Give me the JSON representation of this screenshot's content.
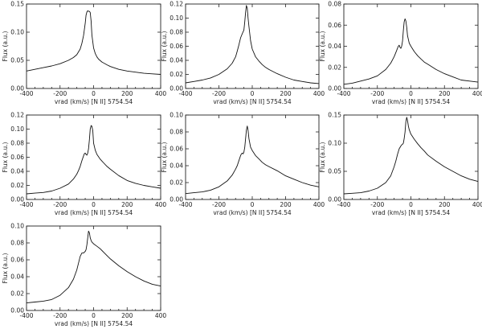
{
  "chart_data": [
    {
      "type": "line",
      "xlabel": "vrad (km/s)   [N II] 5754.54",
      "ylabel": "Flux (a.u.)",
      "xlim": [
        -400,
        400
      ],
      "ylim": [
        0,
        0.15
      ],
      "xticks": [
        "-400",
        "-200",
        "0",
        "200",
        "400"
      ],
      "yticks": [
        "0.00",
        "0.05",
        "0.10",
        "0.15"
      ],
      "series": [
        {
          "x": [
            -400,
            -350,
            -300,
            -250,
            -200,
            -150,
            -120,
            -100,
            -80,
            -70,
            -60,
            -50,
            -45,
            -40,
            -35,
            -30,
            -25,
            -20,
            -15,
            -10,
            0,
            10,
            20,
            30,
            50,
            80,
            100,
            150,
            200,
            250,
            300,
            350,
            400
          ],
          "y": [
            0.031,
            0.034,
            0.037,
            0.04,
            0.044,
            0.05,
            0.055,
            0.06,
            0.07,
            0.08,
            0.094,
            0.116,
            0.13,
            0.136,
            0.138,
            0.137,
            0.137,
            0.135,
            0.12,
            0.095,
            0.072,
            0.062,
            0.056,
            0.052,
            0.047,
            0.042,
            0.039,
            0.034,
            0.031,
            0.029,
            0.027,
            0.026,
            0.025
          ]
        }
      ]
    },
    {
      "type": "line",
      "xlabel": "vrad (km/s)   [N II] 5754.54",
      "ylabel": "Flux (a.u.)",
      "xlim": [
        -400,
        400
      ],
      "ylim": [
        0,
        0.12
      ],
      "xticks": [
        "-400",
        "-200",
        "0",
        "200",
        "400"
      ],
      "yticks": [
        "0.00",
        "0.02",
        "0.04",
        "0.06",
        "0.08",
        "0.10",
        "0.12"
      ],
      "series": [
        {
          "x": [
            -400,
            -350,
            -300,
            -250,
            -200,
            -150,
            -120,
            -100,
            -90,
            -80,
            -70,
            -60,
            -50,
            -45,
            -40,
            -35,
            -30,
            -25,
            -20,
            -10,
            0,
            20,
            40,
            60,
            80,
            100,
            150,
            200,
            250,
            300,
            350,
            400
          ],
          "y": [
            0.008,
            0.01,
            0.012,
            0.015,
            0.02,
            0.028,
            0.036,
            0.045,
            0.053,
            0.062,
            0.072,
            0.078,
            0.083,
            0.095,
            0.108,
            0.118,
            0.114,
            0.1,
            0.088,
            0.068,
            0.056,
            0.045,
            0.039,
            0.034,
            0.03,
            0.027,
            0.021,
            0.016,
            0.012,
            0.01,
            0.008,
            0.007
          ]
        }
      ]
    },
    {
      "type": "line",
      "xlabel": "vrad (km/s)   [N II] 5754.54",
      "ylabel": "Flux (a.u.)",
      "xlim": [
        -400,
        400
      ],
      "ylim": [
        0,
        0.08
      ],
      "xticks": [
        "-400",
        "-200",
        "0",
        "200",
        "400"
      ],
      "yticks": [
        "0.00",
        "0.02",
        "0.04",
        "0.06",
        "0.08"
      ],
      "series": [
        {
          "x": [
            -400,
            -350,
            -300,
            -250,
            -200,
            -150,
            -120,
            -100,
            -90,
            -80,
            -75,
            -70,
            -65,
            -60,
            -55,
            -50,
            -45,
            -40,
            -35,
            -30,
            -25,
            -20,
            -10,
            0,
            20,
            40,
            60,
            80,
            100,
            150,
            200,
            250,
            300,
            350,
            400
          ],
          "y": [
            0.004,
            0.005,
            0.007,
            0.009,
            0.012,
            0.018,
            0.024,
            0.03,
            0.034,
            0.038,
            0.04,
            0.041,
            0.039,
            0.038,
            0.04,
            0.045,
            0.055,
            0.063,
            0.066,
            0.064,
            0.058,
            0.05,
            0.043,
            0.04,
            0.035,
            0.031,
            0.028,
            0.025,
            0.023,
            0.018,
            0.014,
            0.011,
            0.008,
            0.007,
            0.006
          ]
        }
      ]
    },
    {
      "type": "line",
      "xlabel": "vrad (km/s)   [N II] 5754.54",
      "ylabel": "Flux (a.u.)",
      "xlim": [
        -400,
        400
      ],
      "ylim": [
        0,
        0.12
      ],
      "xticks": [
        "-400",
        "-200",
        "0",
        "200",
        "400"
      ],
      "yticks": [
        "0.00",
        "0.02",
        "0.04",
        "0.06",
        "0.08",
        "0.10",
        "0.12"
      ],
      "series": [
        {
          "x": [
            -400,
            -350,
            -300,
            -250,
            -200,
            -150,
            -120,
            -100,
            -90,
            -80,
            -70,
            -60,
            -55,
            -50,
            -45,
            -40,
            -35,
            -30,
            -25,
            -20,
            -15,
            -10,
            -5,
            0,
            10,
            20,
            40,
            60,
            80,
            100,
            150,
            200,
            250,
            300,
            350,
            400
          ],
          "y": [
            0.008,
            0.009,
            0.01,
            0.012,
            0.016,
            0.022,
            0.029,
            0.036,
            0.041,
            0.047,
            0.055,
            0.062,
            0.065,
            0.066,
            0.064,
            0.063,
            0.066,
            0.072,
            0.085,
            0.1,
            0.105,
            0.104,
            0.098,
            0.08,
            0.07,
            0.064,
            0.057,
            0.052,
            0.047,
            0.043,
            0.034,
            0.027,
            0.023,
            0.02,
            0.018,
            0.016
          ]
        }
      ]
    },
    {
      "type": "line",
      "xlabel": "vrad (km/s)   [N II] 5754.54",
      "ylabel": "Flux (a.u.)",
      "xlim": [
        -400,
        400
      ],
      "ylim": [
        0,
        0.1
      ],
      "xticks": [
        "-400",
        "-200",
        "0",
        "200",
        "400"
      ],
      "yticks": [
        "0.00",
        "0.02",
        "0.04",
        "0.06",
        "0.08",
        "0.10"
      ],
      "series": [
        {
          "x": [
            -400,
            -350,
            -300,
            -250,
            -200,
            -150,
            -120,
            -100,
            -90,
            -80,
            -70,
            -65,
            -60,
            -55,
            -50,
            -45,
            -40,
            -35,
            -30,
            -25,
            -20,
            -10,
            0,
            20,
            40,
            60,
            80,
            100,
            150,
            200,
            250,
            300,
            350,
            400
          ],
          "y": [
            0.007,
            0.008,
            0.009,
            0.011,
            0.015,
            0.022,
            0.029,
            0.036,
            0.04,
            0.046,
            0.052,
            0.054,
            0.055,
            0.054,
            0.056,
            0.062,
            0.072,
            0.082,
            0.087,
            0.082,
            0.072,
            0.062,
            0.058,
            0.052,
            0.048,
            0.044,
            0.041,
            0.039,
            0.034,
            0.028,
            0.024,
            0.02,
            0.017,
            0.015
          ]
        }
      ]
    },
    {
      "type": "line",
      "xlabel": "vrad (km/s)   [N II] 5754.54",
      "ylabel": "Flux (a.u.)",
      "xlim": [
        -400,
        400
      ],
      "ylim": [
        0,
        0.15
      ],
      "xticks": [
        "-400",
        "-200",
        "0",
        "200",
        "400"
      ],
      "yticks": [
        "0.00",
        "0.05",
        "0.10",
        "0.15"
      ],
      "series": [
        {
          "x": [
            -400,
            -350,
            -300,
            -250,
            -200,
            -150,
            -120,
            -100,
            -90,
            -80,
            -70,
            -60,
            -55,
            -50,
            -45,
            -40,
            -35,
            -30,
            -25,
            -20,
            -15,
            -10,
            0,
            20,
            40,
            60,
            80,
            100,
            150,
            200,
            250,
            300,
            350,
            400
          ],
          "y": [
            0.01,
            0.011,
            0.012,
            0.015,
            0.02,
            0.03,
            0.042,
            0.058,
            0.068,
            0.08,
            0.09,
            0.095,
            0.097,
            0.098,
            0.1,
            0.108,
            0.12,
            0.138,
            0.146,
            0.14,
            0.13,
            0.124,
            0.116,
            0.107,
            0.099,
            0.092,
            0.086,
            0.079,
            0.068,
            0.058,
            0.05,
            0.042,
            0.036,
            0.032
          ]
        }
      ]
    },
    {
      "type": "line",
      "xlabel": "vrad (km/s)   [N II] 5754.54",
      "ylabel": "Flux (a.u.)",
      "xlim": [
        -400,
        400
      ],
      "ylim": [
        0,
        0.1
      ],
      "xticks": [
        "-400",
        "-200",
        "0",
        "200",
        "400"
      ],
      "yticks": [
        "0.00",
        "0.02",
        "0.04",
        "0.06",
        "0.08",
        "0.10"
      ],
      "series": [
        {
          "x": [
            -400,
            -350,
            -300,
            -250,
            -200,
            -150,
            -120,
            -100,
            -90,
            -80,
            -70,
            -60,
            -55,
            -50,
            -45,
            -40,
            -35,
            -30,
            -25,
            -20,
            -15,
            -10,
            0,
            20,
            40,
            60,
            80,
            100,
            150,
            200,
            250,
            300,
            350,
            400
          ],
          "y": [
            0.009,
            0.01,
            0.011,
            0.013,
            0.018,
            0.027,
            0.037,
            0.048,
            0.056,
            0.064,
            0.068,
            0.068,
            0.069,
            0.07,
            0.072,
            0.078,
            0.086,
            0.094,
            0.092,
            0.086,
            0.083,
            0.081,
            0.079,
            0.076,
            0.073,
            0.069,
            0.065,
            0.061,
            0.053,
            0.046,
            0.04,
            0.035,
            0.031,
            0.029
          ]
        }
      ]
    }
  ]
}
